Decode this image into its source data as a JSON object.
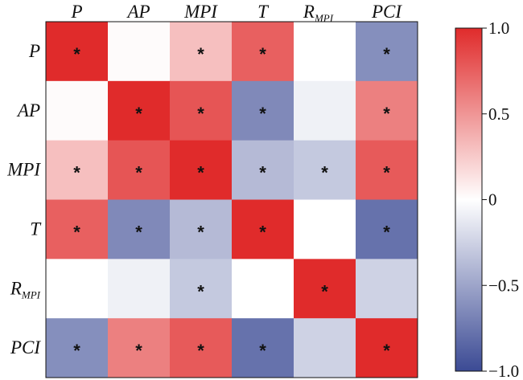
{
  "chart_data": {
    "type": "heatmap",
    "title": "",
    "columns": [
      {
        "main": "P",
        "sub": ""
      },
      {
        "main": "AP",
        "sub": ""
      },
      {
        "main": "MPI",
        "sub": ""
      },
      {
        "main": "T",
        "sub": ""
      },
      {
        "main": "R",
        "sub": "MPI"
      },
      {
        "main": "PCI",
        "sub": ""
      }
    ],
    "rows": [
      {
        "main": "P",
        "sub": ""
      },
      {
        "main": "AP",
        "sub": ""
      },
      {
        "main": "MPI",
        "sub": ""
      },
      {
        "main": "T",
        "sub": ""
      },
      {
        "main": "R",
        "sub": "MPI"
      },
      {
        "main": "PCI",
        "sub": ""
      }
    ],
    "values": [
      [
        1.0,
        0.02,
        0.3,
        0.75,
        0.0,
        -0.62
      ],
      [
        0.02,
        1.0,
        0.8,
        -0.65,
        -0.08,
        0.6
      ],
      [
        0.3,
        0.8,
        1.0,
        -0.38,
        -0.3,
        0.78
      ],
      [
        0.75,
        -0.65,
        -0.38,
        1.0,
        0.0,
        -0.78
      ],
      [
        0.0,
        -0.08,
        -0.3,
        0.0,
        1.0,
        -0.25
      ],
      [
        -0.62,
        0.6,
        0.78,
        -0.78,
        -0.25,
        1.0
      ]
    ],
    "significant": [
      [
        true,
        false,
        true,
        true,
        false,
        true
      ],
      [
        false,
        true,
        true,
        true,
        false,
        true
      ],
      [
        true,
        true,
        true,
        true,
        true,
        true
      ],
      [
        true,
        true,
        true,
        true,
        false,
        true
      ],
      [
        false,
        false,
        true,
        false,
        true,
        false
      ],
      [
        true,
        true,
        true,
        true,
        false,
        true
      ]
    ],
    "significance_marker": "*",
    "colorbar": {
      "range": [
        -1.0,
        1.0
      ],
      "ticks": [
        -1.0,
        -0.5,
        0,
        0.5,
        1.0
      ],
      "tick_labels": [
        "−1.0",
        "−0.5",
        "0",
        "0.5",
        "1.0"
      ],
      "colors": {
        "low": "#3b4a94",
        "mid": "#ffffff",
        "high": "#e02b2b"
      }
    }
  }
}
